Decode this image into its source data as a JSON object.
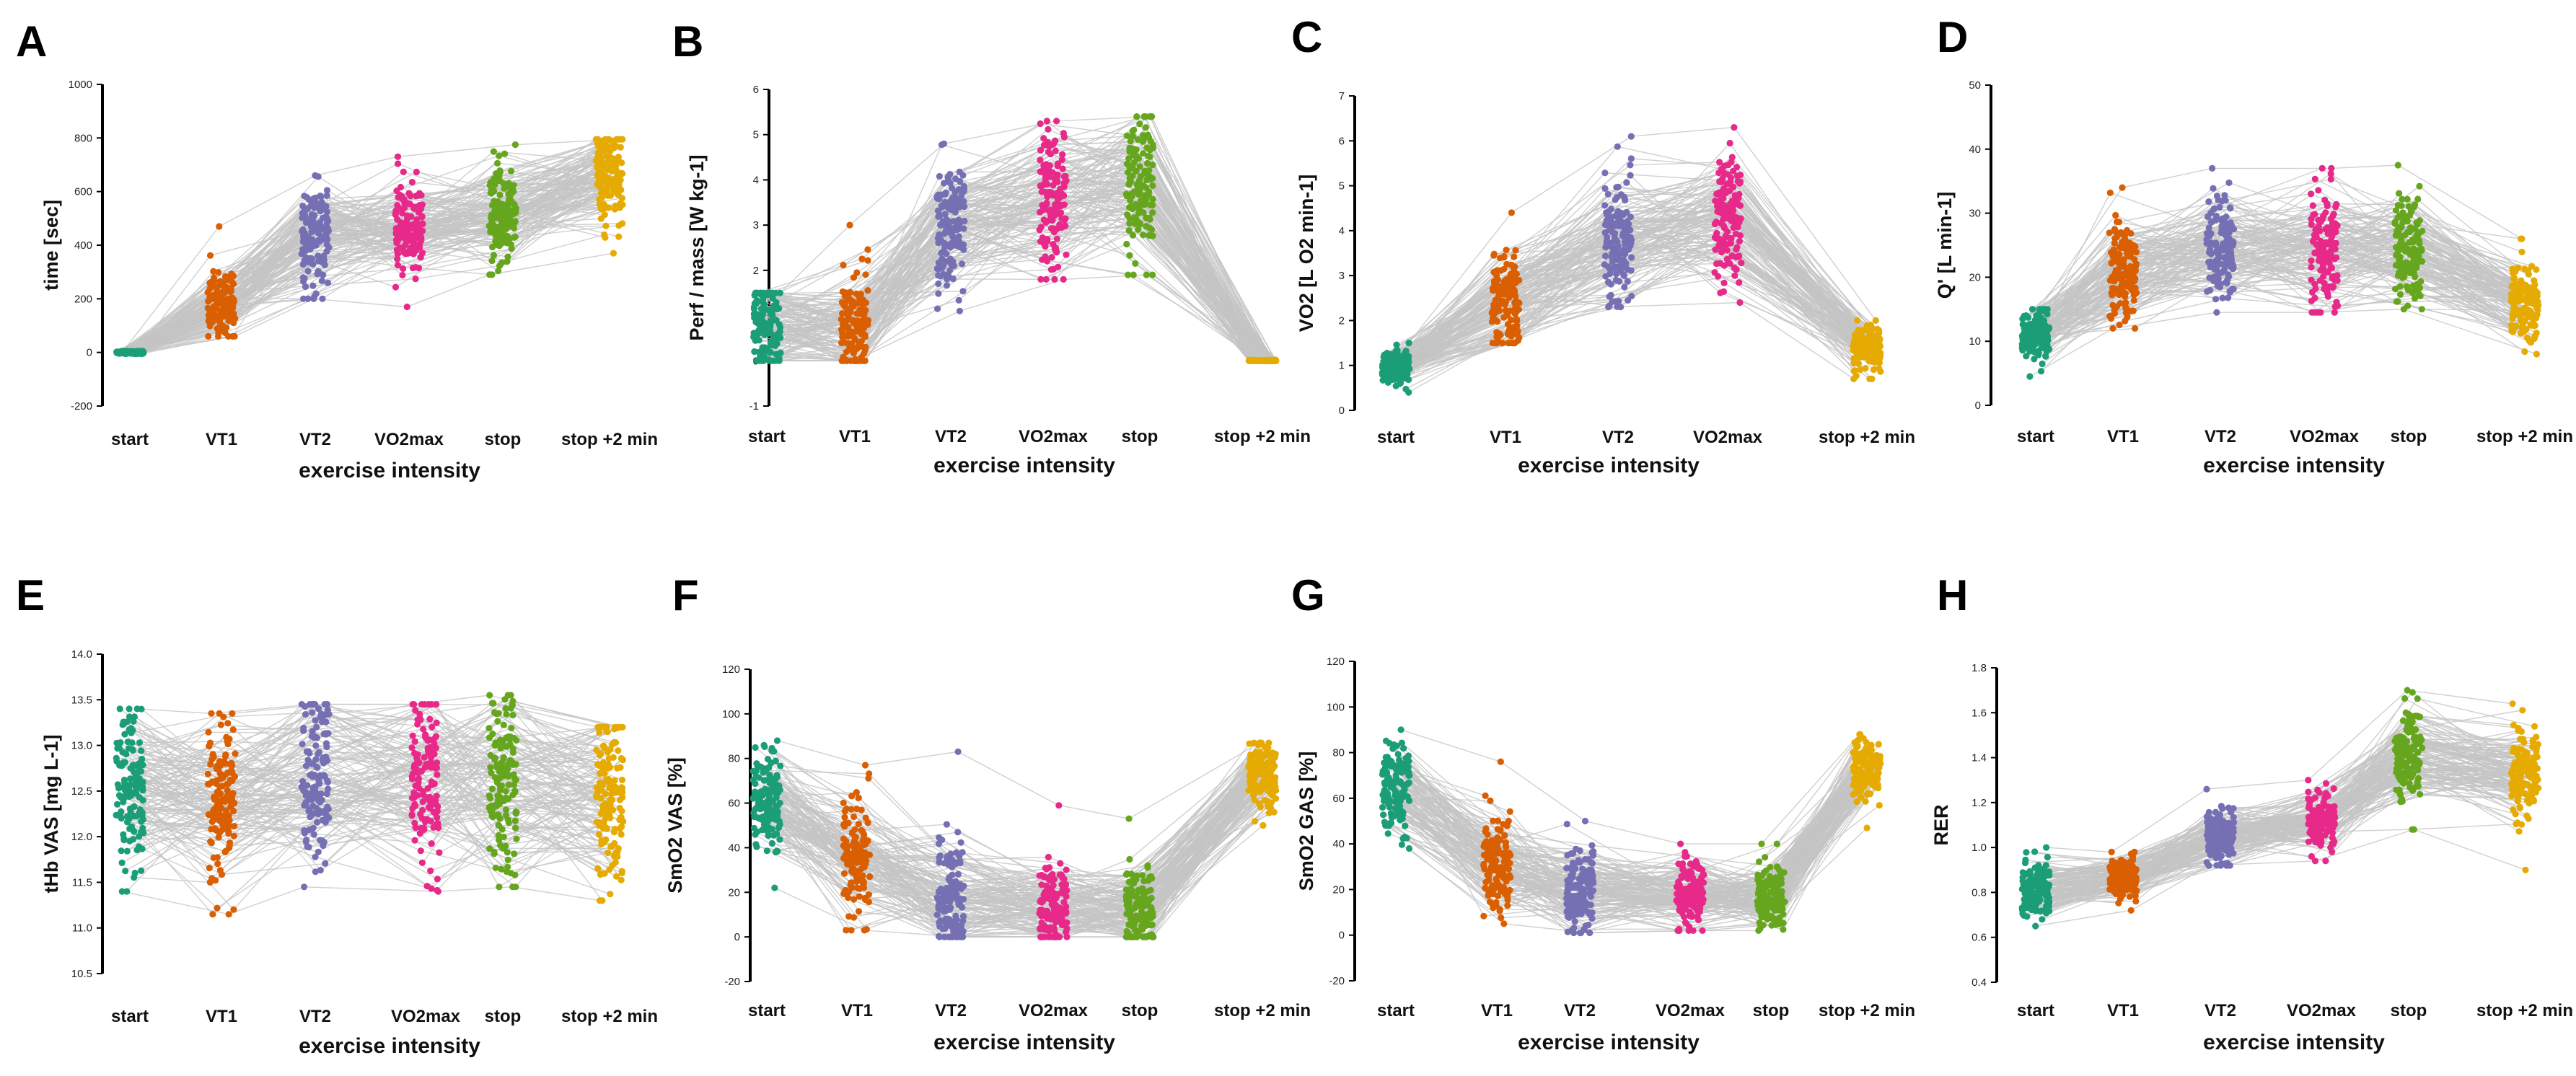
{
  "figure": {
    "colors": {
      "start": "#1b9e77",
      "VT1": "#d95f02",
      "VT2": "#7570b3",
      "VO2max": "#e7298a",
      "stop": "#66a61e",
      "stop_plus_2": "#e6ab02",
      "lines": "#c4c4c4"
    }
  },
  "chart_data": [
    {
      "panel": "A",
      "type": "scatter",
      "xlabel": "exercise intensity",
      "ylabel": "time [sec]",
      "ylim": [
        -200,
        1000
      ],
      "yticks": [
        "-200",
        "0",
        "200",
        "400",
        "600",
        "800",
        "1000"
      ],
      "categories": [
        "start",
        "VT1",
        "VT2",
        "VO2max",
        "stop",
        "stop +2 min"
      ],
      "series": [
        {
          "name": "start",
          "mean": 0,
          "sd": 3,
          "min": -5,
          "max": 5
        },
        {
          "name": "VT1",
          "mean": 190,
          "sd": 75,
          "min": 60,
          "max": 470
        },
        {
          "name": "VT2",
          "mean": 440,
          "sd": 95,
          "min": 200,
          "max": 660
        },
        {
          "name": "VO2max",
          "mean": 470,
          "sd": 95,
          "min": 170,
          "max": 730
        },
        {
          "name": "stop",
          "mean": 530,
          "sd": 90,
          "min": 290,
          "max": 775
        },
        {
          "name": "stop +2 min",
          "mean": 650,
          "sd": 90,
          "min": 370,
          "max": 795
        }
      ]
    },
    {
      "panel": "B",
      "type": "scatter",
      "xlabel": "exercise intensity",
      "ylabel": "Perf / mass [W kg-1]",
      "ylim": [
        -1,
        6
      ],
      "yticks": [
        "-1",
        "0",
        "1",
        "2",
        "3",
        "4",
        "5",
        "6"
      ],
      "categories": [
        "start",
        "VT1",
        "VT2",
        "VO2max",
        "stop",
        "stop +2 min"
      ],
      "series": [
        {
          "name": "start",
          "mean": 0.8,
          "sd": 0.55,
          "min": 0,
          "max": 1.5
        },
        {
          "name": "VT1",
          "mean": 0.8,
          "sd": 0.6,
          "min": 0,
          "max": 3.0
        },
        {
          "name": "VT2",
          "mean": 3.0,
          "sd": 0.75,
          "min": 1.1,
          "max": 4.8
        },
        {
          "name": "VO2max",
          "mean": 3.6,
          "sd": 0.75,
          "min": 1.8,
          "max": 5.3
        },
        {
          "name": "stop",
          "mean": 3.9,
          "sd": 0.75,
          "min": 1.9,
          "max": 5.4
        },
        {
          "name": "stop +2 min",
          "mean": 0,
          "sd": 0.01,
          "min": 0,
          "max": 0.02
        }
      ]
    },
    {
      "panel": "C",
      "type": "scatter",
      "xlabel": "exercise intensity",
      "ylabel": "VO2 [L O2 min-1]",
      "ylim": [
        0,
        7
      ],
      "yticks": [
        "0",
        "1",
        "2",
        "3",
        "4",
        "5",
        "6",
        "7"
      ],
      "categories": [
        "start",
        "VT1",
        "VT2",
        "VO2max",
        "stop +2 min"
      ],
      "series": [
        {
          "name": "start",
          "mean": 0.95,
          "sd": 0.2,
          "min": 0.4,
          "max": 1.5
        },
        {
          "name": "VT1",
          "mean": 2.5,
          "sd": 0.6,
          "min": 1.5,
          "max": 4.4
        },
        {
          "name": "VT2",
          "mean": 3.8,
          "sd": 0.7,
          "min": 2.3,
          "max": 6.1
        },
        {
          "name": "VO2max",
          "mean": 4.3,
          "sd": 0.7,
          "min": 2.4,
          "max": 6.3
        },
        {
          "name": "stop +2 min",
          "mean": 1.4,
          "sd": 0.3,
          "min": 0.7,
          "max": 2.0
        }
      ]
    },
    {
      "panel": "D",
      "type": "scatter",
      "xlabel": "exercise intensity",
      "ylabel": "Q' [L min-1]",
      "ylim": [
        0,
        50
      ],
      "yticks": [
        "0",
        "10",
        "20",
        "30",
        "40",
        "50"
      ],
      "categories": [
        "start",
        "VT1",
        "VT2",
        "VO2max",
        "stop",
        "stop +2 min"
      ],
      "series": [
        {
          "name": "start",
          "mean": 11,
          "sd": 2.2,
          "min": 4.5,
          "max": 15
        },
        {
          "name": "VT1",
          "mean": 21,
          "sd": 4,
          "min": 12,
          "max": 34
        },
        {
          "name": "VT2",
          "mean": 25,
          "sd": 4.5,
          "min": 14.5,
          "max": 37
        },
        {
          "name": "VO2max",
          "mean": 25,
          "sd": 4.5,
          "min": 14.5,
          "max": 37
        },
        {
          "name": "stop",
          "mean": 25,
          "sd": 4.5,
          "min": 15,
          "max": 37.5
        },
        {
          "name": "stop +2 min",
          "mean": 16,
          "sd": 3,
          "min": 8,
          "max": 26
        }
      ]
    },
    {
      "panel": "E",
      "type": "scatter",
      "xlabel": "exercise intensity",
      "ylabel": "tHb VAS [mg L-1]",
      "ylim": [
        10.5,
        14.0
      ],
      "yticks": [
        "10.5",
        "11.0",
        "11.5",
        "12.0",
        "12.5",
        "13.0",
        "13.5",
        "14.0"
      ],
      "categories": [
        "start",
        "VT1",
        "VT2",
        "VO2max",
        "stop",
        "stop +2 min"
      ],
      "series": [
        {
          "name": "start",
          "mean": 12.5,
          "sd": 0.45,
          "min": 11.4,
          "max": 13.4
        },
        {
          "name": "VT1",
          "mean": 12.4,
          "sd": 0.5,
          "min": 11.15,
          "max": 13.35
        },
        {
          "name": "VT2",
          "mean": 12.6,
          "sd": 0.5,
          "min": 11.45,
          "max": 13.45
        },
        {
          "name": "VO2max",
          "mean": 12.6,
          "sd": 0.5,
          "min": 11.4,
          "max": 13.45
        },
        {
          "name": "stop",
          "mean": 12.6,
          "sd": 0.5,
          "min": 11.45,
          "max": 13.55
        },
        {
          "name": "stop +2 min",
          "mean": 12.4,
          "sd": 0.5,
          "min": 11.3,
          "max": 13.2
        }
      ]
    },
    {
      "panel": "F",
      "type": "scatter",
      "xlabel": "exercise intensity",
      "ylabel": "SmO2 VAS [%]",
      "ylim": [
        -20,
        120
      ],
      "yticks": [
        "-20",
        "0",
        "20",
        "40",
        "60",
        "80",
        "100",
        "120"
      ],
      "categories": [
        "start",
        "VT1",
        "VT2",
        "VO2max",
        "stop",
        "stop +2 min"
      ],
      "series": [
        {
          "name": "start",
          "mean": 63,
          "sd": 11,
          "min": 22,
          "max": 88
        },
        {
          "name": "VT1",
          "mean": 38,
          "sd": 15,
          "min": 3,
          "max": 77
        },
        {
          "name": "VT2",
          "mean": 18,
          "sd": 12,
          "min": 0,
          "max": 83
        },
        {
          "name": "VO2max",
          "mean": 14,
          "sd": 10,
          "min": 0,
          "max": 59
        },
        {
          "name": "stop",
          "mean": 13,
          "sd": 10,
          "min": 0,
          "max": 53
        },
        {
          "name": "stop +2 min",
          "mean": 72,
          "sd": 7,
          "min": 50,
          "max": 87
        }
      ]
    },
    {
      "panel": "G",
      "type": "scatter",
      "xlabel": "exercise intensity",
      "ylabel": "SmO2 GAS [%]",
      "ylim": [
        -20,
        120
      ],
      "yticks": [
        "-20",
        "0",
        "20",
        "40",
        "60",
        "80",
        "100",
        "120"
      ],
      "categories": [
        "start",
        "VT1",
        "VT2",
        "VO2max",
        "stop",
        "stop +2 min"
      ],
      "series": [
        {
          "name": "start",
          "mean": 63,
          "sd": 10,
          "min": 38,
          "max": 90
        },
        {
          "name": "VT1",
          "mean": 30,
          "sd": 12,
          "min": 5,
          "max": 76
        },
        {
          "name": "VT2",
          "mean": 19,
          "sd": 10,
          "min": 1,
          "max": 50
        },
        {
          "name": "VO2max",
          "mean": 17,
          "sd": 8,
          "min": 2,
          "max": 40
        },
        {
          "name": "stop",
          "mean": 16,
          "sd": 8,
          "min": 2,
          "max": 40
        },
        {
          "name": "stop +2 min",
          "mean": 72,
          "sd": 7,
          "min": 47,
          "max": 88
        }
      ]
    },
    {
      "panel": "H",
      "type": "scatter",
      "xlabel": "exercise intensity",
      "ylabel": "RER",
      "ylim": [
        0.4,
        1.8
      ],
      "yticks": [
        "0.4",
        "0.6",
        "0.8",
        "1.0",
        "1.2",
        "1.4",
        "1.6",
        "1.8"
      ],
      "categories": [
        "start",
        "VT1",
        "VT2",
        "VO2max",
        "stop",
        "stop +2 min"
      ],
      "series": [
        {
          "name": "start",
          "mean": 0.8,
          "sd": 0.07,
          "min": 0.65,
          "max": 1.0
        },
        {
          "name": "VT1",
          "mean": 0.86,
          "sd": 0.05,
          "min": 0.72,
          "max": 0.98
        },
        {
          "name": "VT2",
          "mean": 1.05,
          "sd": 0.06,
          "min": 0.92,
          "max": 1.26
        },
        {
          "name": "VO2max",
          "mean": 1.12,
          "sd": 0.07,
          "min": 0.94,
          "max": 1.3
        },
        {
          "name": "stop",
          "mean": 1.4,
          "sd": 0.1,
          "min": 1.08,
          "max": 1.7
        },
        {
          "name": "stop +2 min",
          "mean": 1.33,
          "sd": 0.1,
          "min": 0.9,
          "max": 1.64
        }
      ]
    }
  ]
}
